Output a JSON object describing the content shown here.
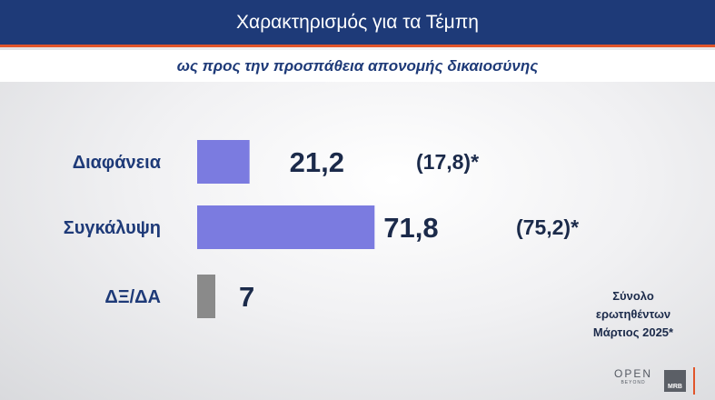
{
  "header": {
    "title": "Χαρακτηρισμός για τα Τέμπη",
    "subtitle": "ως προς την προσπάθεια απονομής δικαιοσύνης"
  },
  "colors": {
    "header_bg": "#1e3a78",
    "accent": "#e1552b",
    "bar_main": "#7b7be0",
    "bar_other": "#8a8a8a",
    "label": "#1e3a78",
    "value": "#1b2a4a"
  },
  "chart_data": {
    "type": "bar",
    "orientation": "horizontal",
    "categories": [
      "Διαφάνεια",
      "Συγκάλυψη",
      "ΔΞ/ΔΑ"
    ],
    "values": [
      21.2,
      71.8,
      7
    ],
    "value_labels": [
      "21,2",
      "71,8",
      "7"
    ],
    "previous_labels": [
      "(17,8)*",
      "(75,2)*",
      ""
    ],
    "previous_values": [
      17.8,
      75.2,
      null
    ],
    "bar_colors": [
      "#7b7be0",
      "#7b7be0",
      "#8a8a8a"
    ],
    "xlim": [
      0,
      100
    ],
    "grid": false,
    "legend": "none"
  },
  "note": {
    "line1": "Σύνολο",
    "line2": "ερωτηθέντων",
    "line3": "Μάρτιος 2025*"
  },
  "branding": {
    "open_label": "OPEN",
    "open_sub": "BEYOND",
    "mrb_label": "MRB"
  }
}
